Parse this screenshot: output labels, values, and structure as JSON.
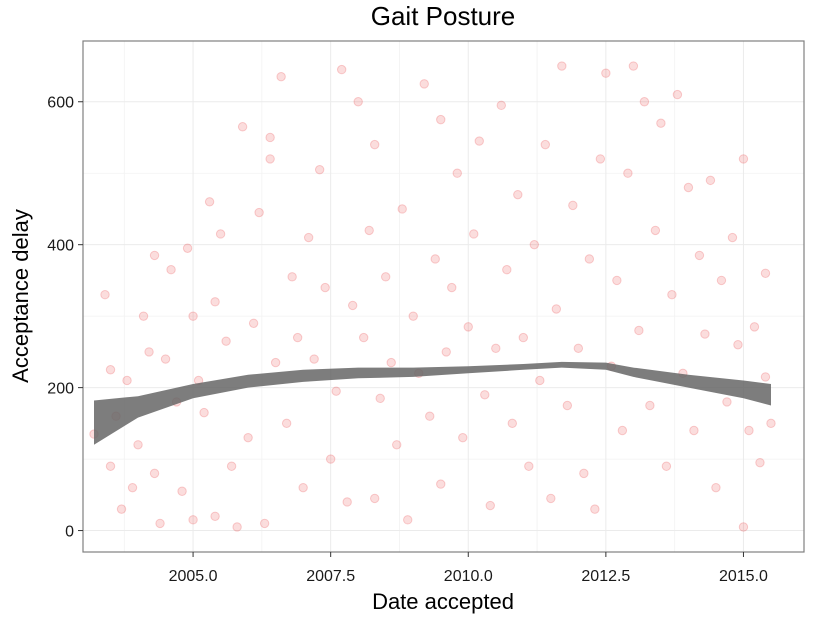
{
  "chart_data": {
    "type": "scatter",
    "title": "Gait Posture",
    "xlabel": "Date accepted",
    "ylabel": "Acceptance delay",
    "xlim": [
      2003.0,
      2016.1
    ],
    "ylim": [
      -30,
      685
    ],
    "x_ticks": [
      2005.0,
      2007.5,
      2010.0,
      2012.5,
      2015.0
    ],
    "x_tick_labels": [
      "2005.0",
      "2007.5",
      "2010.0",
      "2012.5",
      "2015.0"
    ],
    "y_ticks": [
      0,
      200,
      400,
      600
    ],
    "y_tick_labels": [
      "0",
      "200",
      "400",
      "600"
    ],
    "grid": true,
    "point_color": "#e41a1c",
    "point_alpha": 0.15,
    "smooth_color": "#666666",
    "points": [
      [
        2003.2,
        135
      ],
      [
        2003.4,
        330
      ],
      [
        2003.5,
        225
      ],
      [
        2003.5,
        90
      ],
      [
        2003.6,
        160
      ],
      [
        2003.7,
        30
      ],
      [
        2003.8,
        210
      ],
      [
        2003.9,
        60
      ],
      [
        2004.0,
        120
      ],
      [
        2004.1,
        300
      ],
      [
        2004.2,
        250
      ],
      [
        2004.3,
        385
      ],
      [
        2004.3,
        80
      ],
      [
        2004.4,
        10
      ],
      [
        2004.5,
        240
      ],
      [
        2004.6,
        365
      ],
      [
        2004.7,
        180
      ],
      [
        2004.8,
        55
      ],
      [
        2004.9,
        395
      ],
      [
        2005.0,
        300
      ],
      [
        2005.0,
        15
      ],
      [
        2005.1,
        210
      ],
      [
        2005.2,
        165
      ],
      [
        2005.3,
        460
      ],
      [
        2005.4,
        20
      ],
      [
        2005.4,
        320
      ],
      [
        2005.5,
        415
      ],
      [
        2005.6,
        265
      ],
      [
        2005.7,
        90
      ],
      [
        2005.8,
        5
      ],
      [
        2005.9,
        565
      ],
      [
        2006.0,
        130
      ],
      [
        2006.1,
        290
      ],
      [
        2006.2,
        445
      ],
      [
        2006.3,
        10
      ],
      [
        2006.4,
        550
      ],
      [
        2006.4,
        520
      ],
      [
        2006.5,
        235
      ],
      [
        2006.6,
        635
      ],
      [
        2006.7,
        150
      ],
      [
        2006.8,
        355
      ],
      [
        2006.9,
        270
      ],
      [
        2007.0,
        60
      ],
      [
        2007.1,
        410
      ],
      [
        2007.2,
        240
      ],
      [
        2007.3,
        505
      ],
      [
        2007.4,
        340
      ],
      [
        2007.5,
        100
      ],
      [
        2007.6,
        195
      ],
      [
        2007.7,
        645
      ],
      [
        2007.8,
        40
      ],
      [
        2007.9,
        315
      ],
      [
        2008.0,
        600
      ],
      [
        2008.1,
        270
      ],
      [
        2008.2,
        420
      ],
      [
        2008.3,
        540
      ],
      [
        2008.3,
        45
      ],
      [
        2008.4,
        185
      ],
      [
        2008.5,
        355
      ],
      [
        2008.6,
        235
      ],
      [
        2008.7,
        120
      ],
      [
        2008.8,
        450
      ],
      [
        2008.9,
        15
      ],
      [
        2009.0,
        300
      ],
      [
        2009.1,
        220
      ],
      [
        2009.2,
        625
      ],
      [
        2009.3,
        160
      ],
      [
        2009.4,
        380
      ],
      [
        2009.5,
        575
      ],
      [
        2009.5,
        65
      ],
      [
        2009.6,
        250
      ],
      [
        2009.7,
        340
      ],
      [
        2009.8,
        500
      ],
      [
        2009.9,
        130
      ],
      [
        2010.0,
        285
      ],
      [
        2010.1,
        415
      ],
      [
        2010.2,
        545
      ],
      [
        2010.3,
        190
      ],
      [
        2010.4,
        35
      ],
      [
        2010.5,
        255
      ],
      [
        2010.6,
        595
      ],
      [
        2010.7,
        365
      ],
      [
        2010.8,
        150
      ],
      [
        2010.9,
        470
      ],
      [
        2011.0,
        270
      ],
      [
        2011.1,
        90
      ],
      [
        2011.2,
        400
      ],
      [
        2011.3,
        210
      ],
      [
        2011.4,
        540
      ],
      [
        2011.5,
        45
      ],
      [
        2011.6,
        310
      ],
      [
        2011.7,
        650
      ],
      [
        2011.8,
        175
      ],
      [
        2011.9,
        455
      ],
      [
        2012.0,
        255
      ],
      [
        2012.1,
        80
      ],
      [
        2012.2,
        380
      ],
      [
        2012.3,
        30
      ],
      [
        2012.4,
        520
      ],
      [
        2012.5,
        640
      ],
      [
        2012.6,
        230
      ],
      [
        2012.7,
        350
      ],
      [
        2012.8,
        140
      ],
      [
        2012.9,
        500
      ],
      [
        2013.0,
        650
      ],
      [
        2013.1,
        280
      ],
      [
        2013.2,
        600
      ],
      [
        2013.3,
        175
      ],
      [
        2013.4,
        420
      ],
      [
        2013.5,
        570
      ],
      [
        2013.6,
        90
      ],
      [
        2013.7,
        330
      ],
      [
        2013.8,
        610
      ],
      [
        2013.9,
        220
      ],
      [
        2014.0,
        480
      ],
      [
        2014.1,
        140
      ],
      [
        2014.2,
        385
      ],
      [
        2014.3,
        275
      ],
      [
        2014.4,
        490
      ],
      [
        2014.5,
        60
      ],
      [
        2014.6,
        350
      ],
      [
        2014.7,
        180
      ],
      [
        2014.8,
        410
      ],
      [
        2014.9,
        260
      ],
      [
        2015.0,
        520
      ],
      [
        2015.0,
        5
      ],
      [
        2015.1,
        140
      ],
      [
        2015.2,
        285
      ],
      [
        2015.3,
        95
      ],
      [
        2015.4,
        360
      ],
      [
        2015.4,
        215
      ],
      [
        2015.5,
        150
      ]
    ],
    "smooth": {
      "x": [
        2003.2,
        2004.0,
        2005.0,
        2006.0,
        2007.0,
        2008.0,
        2009.0,
        2010.0,
        2011.0,
        2011.7,
        2012.5,
        2013.0,
        2014.0,
        2015.0,
        2015.5
      ],
      "lower": [
        120,
        158,
        185,
        200,
        208,
        213,
        215,
        220,
        225,
        228,
        225,
        215,
        200,
        185,
        175
      ],
      "upper": [
        182,
        188,
        205,
        218,
        225,
        228,
        228,
        230,
        233,
        236,
        235,
        228,
        218,
        210,
        205
      ]
    }
  }
}
